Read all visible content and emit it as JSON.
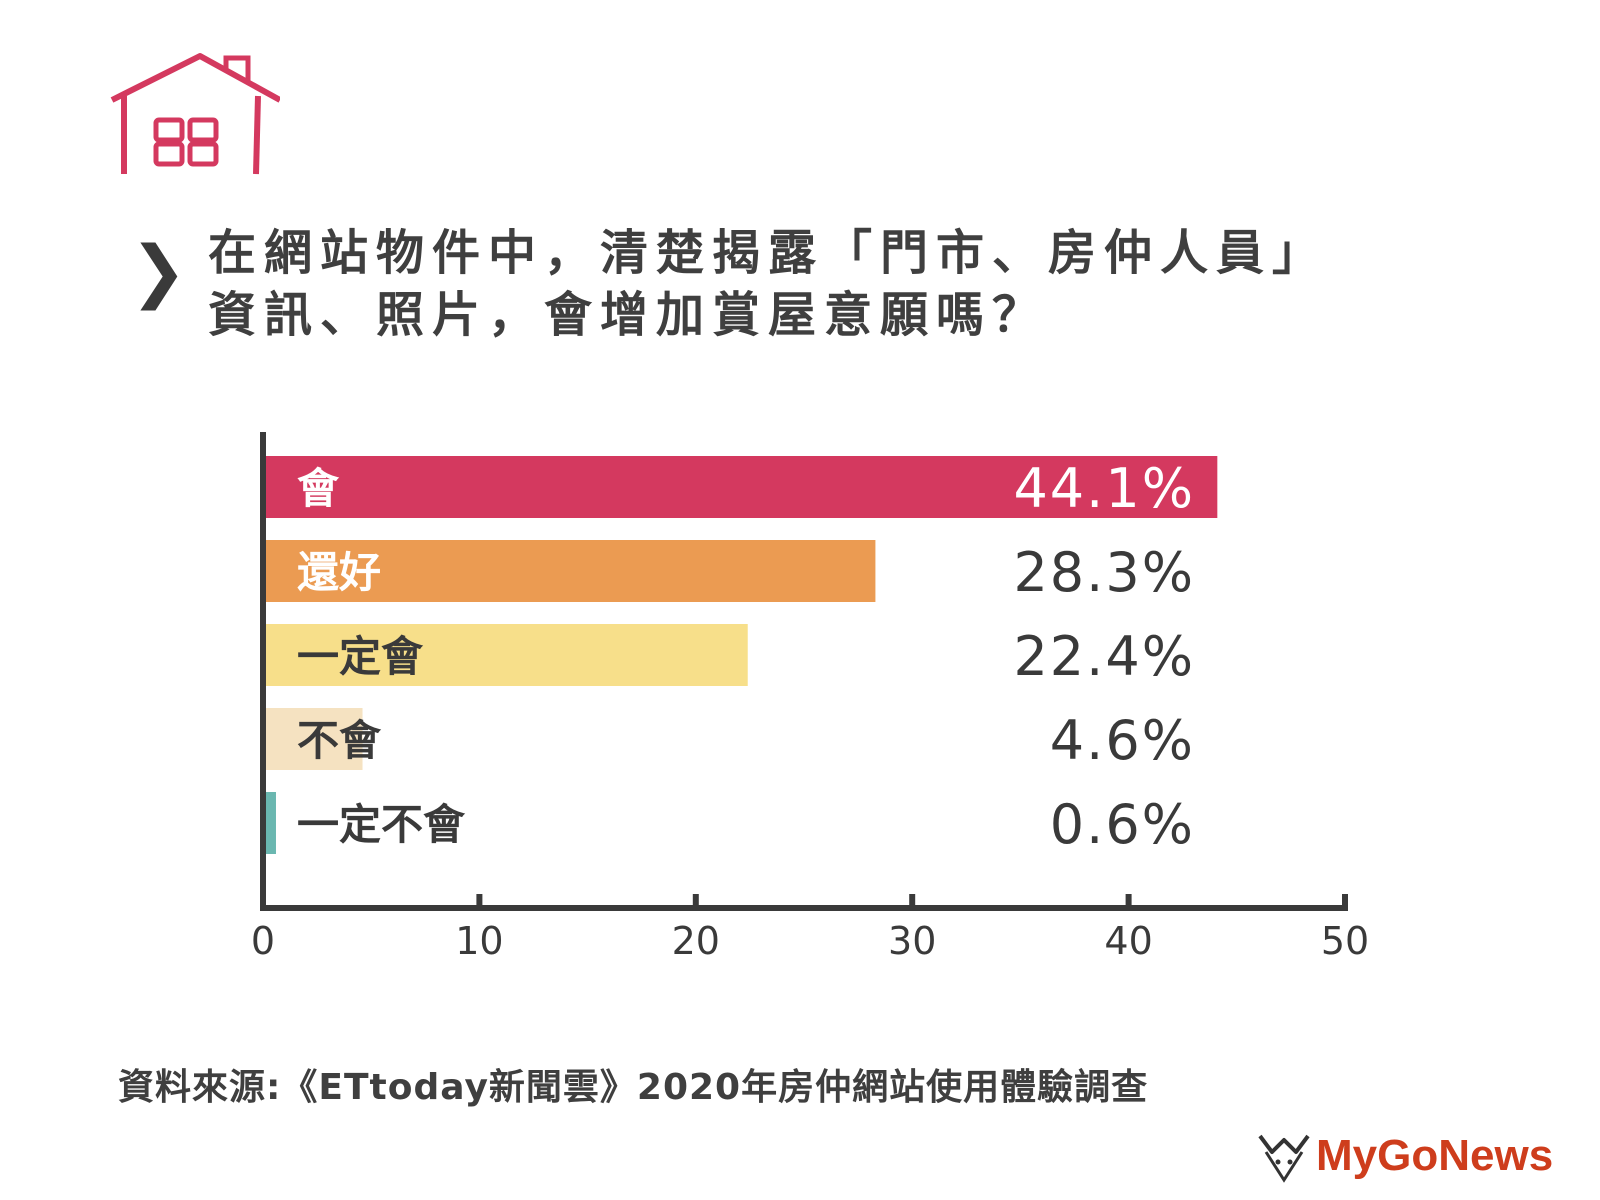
{
  "title_lines": [
    "在網站物件中，清楚揭露「門市、房仲人員」",
    "資訊、照片，會增加賞屋意願嗎？"
  ],
  "source": "資料來源:《ETtoday新聞雲》2020年房仲網站使用體驗調查",
  "brand": "MyGoNews",
  "icons": {
    "header": "house-icon",
    "title_marker": "chevron-right-icon"
  },
  "chart_data": {
    "type": "bar",
    "orientation": "horizontal",
    "categories": [
      "會",
      "還好",
      "一定會",
      "不會",
      "一定不會"
    ],
    "values": [
      44.1,
      28.3,
      22.4,
      4.6,
      0.6
    ],
    "value_labels": [
      "44.1%",
      "28.3%",
      "22.4%",
      "4.6%",
      "0.6%"
    ],
    "colors": [
      "#d4395f",
      "#eb9b52",
      "#f7df8a",
      "#f5e2c1",
      "#6ab7b0"
    ],
    "category_label_colors": [
      "#ffffff",
      "#ffffff",
      "#3a3a3a",
      "#3a3a3a",
      "#3a3a3a"
    ],
    "value_label_colors": [
      "#ffffff",
      "#3a3a3a",
      "#3a3a3a",
      "#3a3a3a",
      "#3a3a3a"
    ],
    "xlim": [
      0,
      50
    ],
    "xticks": [
      0,
      10,
      20,
      30,
      40,
      50
    ],
    "xlabel": "",
    "ylabel": "",
    "grid": false
  }
}
